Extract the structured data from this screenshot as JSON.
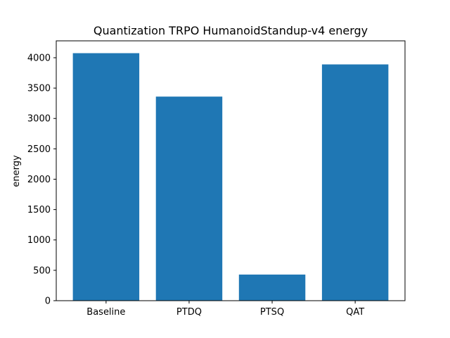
{
  "chart_data": {
    "type": "bar",
    "title": "Quantization TRPO HumanoidStandup-v4 energy",
    "xlabel": "",
    "ylabel": "energy",
    "categories": [
      "Baseline",
      "PTDQ",
      "PTSQ",
      "QAT"
    ],
    "values": [
      4075,
      3360,
      430,
      3890
    ],
    "ylim": [
      0,
      4278
    ],
    "yticks": [
      0,
      500,
      1000,
      1500,
      2000,
      2500,
      3000,
      3500,
      4000
    ],
    "grid": false,
    "bar_color": "#1f77b4"
  }
}
